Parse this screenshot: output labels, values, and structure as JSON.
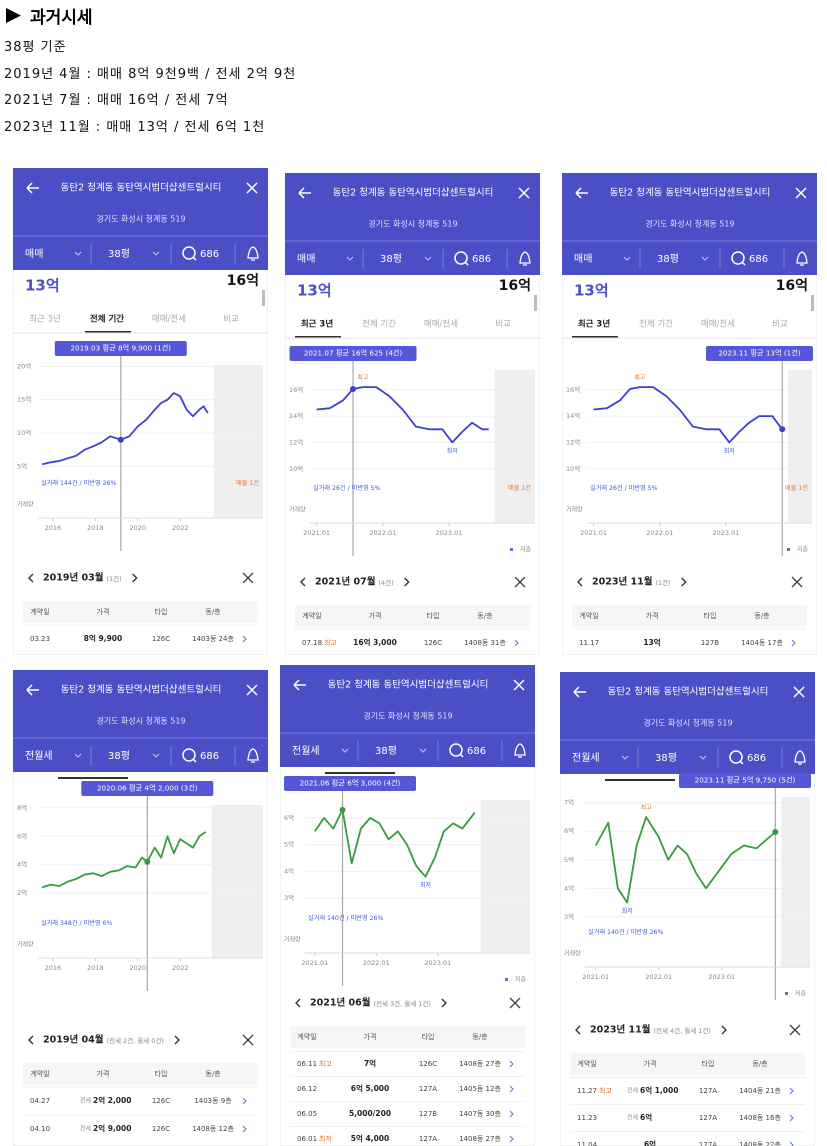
{
  "header": {
    "title": "과거시세",
    "lines": [
      "38평 기준",
      "2019년 4월 : 매매 8억 9천9백 / 전세 2억 9천",
      "2021년 7월 : 매매 16억 / 전세 7억",
      "2023년 11월 : 매매 13억 / 전세 6억 1천"
    ]
  },
  "panels": [
    {
      "title": "동탄2 청계동 동탄역시범더샵센트럴시티",
      "address": "경기도 화성시 청계동 519",
      "trade_type": "매매",
      "size": "38평",
      "count": "686",
      "price_low": "13억",
      "price_high": "16억",
      "tabs": [
        "최근 3년",
        "전체 기간",
        "매매/전세",
        "비교"
      ],
      "selected_tab": 1,
      "chart": {
        "type": "line",
        "color": "#3d3fd0",
        "tooltip": "2019.03 평균 8억 9,900 (1건)",
        "xlim": [
          2015.3,
          2025.9
        ],
        "ylim": [
          4,
          20.2
        ],
        "xticks": [
          2016,
          2018,
          2020,
          2022
        ],
        "yticks": [
          {
            "value": 5,
            "label": "5억"
          },
          {
            "value": 10,
            "label": "10억"
          },
          {
            "value": 15,
            "label": "15억"
          },
          {
            "value": 20,
            "label": "20억"
          }
        ],
        "x": [
          2015.5,
          2015.9,
          2016.3,
          2016.7,
          2017.1,
          2017.5,
          2017.9,
          2018.3,
          2018.7,
          2019.2,
          2019.6,
          2020.0,
          2020.4,
          2020.8,
          2021.1,
          2021.4,
          2021.7,
          2022.0,
          2022.3,
          2022.6,
          2022.9,
          2023.1,
          2023.3
        ],
        "values": [
          5.3,
          5.6,
          5.8,
          6.2,
          6.6,
          7.5,
          8.0,
          8.6,
          9.5,
          8.99,
          9.5,
          11,
          12,
          13.5,
          14.5,
          15,
          16,
          15.5,
          13.5,
          12.5,
          13.5,
          14,
          13
        ],
        "highlight": {
          "x": 2019.2,
          "value": 8.99
        },
        "summary": "실거래 144건 / 미반영 26%",
        "listing": "매물 1건",
        "volume_label": "거래량"
      },
      "table": {
        "period": "2019년 03월",
        "count": "(1건)",
        "columns": [
          "계약일",
          "가격",
          "타입",
          "동/층"
        ],
        "rows": [
          {
            "date": "03.23",
            "price": "8억 9,900",
            "type": "126C",
            "unit": "1403동 24층"
          }
        ]
      }
    },
    {
      "title": "동탄2 청계동 동탄역시범더샵센트럴시티",
      "address": "경기도 화성시 청계동 519",
      "trade_type": "매매",
      "size": "38평",
      "count": "686",
      "price_low": "13억",
      "price_high": "16억",
      "tabs": [
        "최근 3년",
        "전체 기간",
        "매매/전세",
        "비교"
      ],
      "selected_tab": 0,
      "chart": {
        "type": "line",
        "color": "#3d3fd0",
        "tooltip": "2021.07 평균 16억 625 (4건)",
        "xlim": [
          2020.9,
          2024.3
        ],
        "ylim": [
          9.3,
          17.5
        ],
        "xticks": [
          {
            "value": 2021,
            "label": "2021.01"
          },
          {
            "value": 2022,
            "label": "2022.01"
          },
          {
            "value": 2023,
            "label": "2023.01"
          }
        ],
        "yticks": [
          {
            "value": 10,
            "label": "10억"
          },
          {
            "value": 12,
            "label": "12억"
          },
          {
            "value": 14,
            "label": "14억"
          },
          {
            "value": 16,
            "label": "16억"
          }
        ],
        "x": [
          2021.0,
          2021.2,
          2021.4,
          2021.55,
          2021.7,
          2021.9,
          2022.1,
          2022.3,
          2022.5,
          2022.7,
          2022.9,
          2023.05,
          2023.2,
          2023.35,
          2023.5,
          2023.6
        ],
        "values": [
          14.5,
          14.6,
          15.2,
          16.06,
          16.2,
          16.2,
          15.5,
          14.5,
          13.2,
          13.0,
          13.0,
          12.0,
          12.8,
          13.5,
          13.0,
          13.0
        ],
        "highlight": {
          "x": 2021.55,
          "value": 16.06
        },
        "high_label": "최고",
        "low_label": "최저",
        "summary": "실거래 26건 / 미반영 5%",
        "listing": "매물 1건",
        "volume_label": "거래량",
        "legend": "저층"
      },
      "table": {
        "period": "2021년 07월",
        "count": "(4건)",
        "columns": [
          "계약일",
          "가격",
          "타입",
          "동/층"
        ],
        "rows": [
          {
            "date": "07.18",
            "tag": "최고",
            "price": "16억 3,000",
            "type": "126C",
            "unit": "1408동 31층"
          }
        ]
      }
    },
    {
      "title": "동탄2 청계동 동탄역시범더샵센트럴시티",
      "address": "경기도 화성시 청계동 519",
      "trade_type": "매매",
      "size": "38평",
      "count": "686",
      "price_low": "13억",
      "price_high": "16억",
      "tabs": [
        "최근 3년",
        "전체 기간",
        "매매/전세",
        "비교"
      ],
      "selected_tab": 0,
      "chart": {
        "type": "line",
        "color": "#3d3fd0",
        "tooltip": "2023.11 평균 13억 (1건)",
        "xlim": [
          2020.9,
          2024.3
        ],
        "ylim": [
          9.3,
          17.5
        ],
        "xticks": [
          {
            "value": 2021,
            "label": "2021.01"
          },
          {
            "value": 2022,
            "label": "2022.01"
          },
          {
            "value": 2023,
            "label": "2023.01"
          }
        ],
        "yticks": [
          {
            "value": 10,
            "label": "10억"
          },
          {
            "value": 12,
            "label": "12억"
          },
          {
            "value": 14,
            "label": "14억"
          },
          {
            "value": 16,
            "label": "16억"
          }
        ],
        "x": [
          2021.0,
          2021.2,
          2021.4,
          2021.55,
          2021.7,
          2021.9,
          2022.1,
          2022.3,
          2022.5,
          2022.7,
          2022.9,
          2023.05,
          2023.2,
          2023.35,
          2023.5,
          2023.7,
          2023.85
        ],
        "values": [
          14.5,
          14.6,
          15.2,
          16.06,
          16.2,
          16.2,
          15.5,
          14.5,
          13.2,
          13.0,
          13.0,
          12.0,
          12.8,
          13.5,
          14.0,
          14.0,
          13
        ],
        "highlight": {
          "x": 2023.85,
          "value": 13
        },
        "high_label": "최고",
        "low_label": "최저",
        "summary": "실거래 26건 / 미반영 5%",
        "listing": "매물 1건",
        "volume_label": "거래량",
        "legend": "저층"
      },
      "table": {
        "period": "2023년 11월",
        "count": "(1건)",
        "columns": [
          "계약일",
          "가격",
          "타입",
          "동/층"
        ],
        "rows": [
          {
            "date": "11.17",
            "price": "13억",
            "type": "127B",
            "unit": "1404동 17층"
          }
        ]
      }
    },
    {
      "title": "동탄2 청계동 동탄역시범더샵센트럴시티",
      "address": "경기도 화성시 청계동 519",
      "trade_type": "전월세",
      "size": "38평",
      "count": "686",
      "chart": {
        "type": "line",
        "color": "#3a9a3e",
        "tooltip": "2020.06 평균 4억 2,000 (3건)",
        "xlim": [
          2015.3,
          2025.9
        ],
        "ylim": [
          0.6,
          8.2
        ],
        "xticks": [
          2016,
          2018,
          2020,
          2022
        ],
        "yticks": [
          {
            "value": 2,
            "label": "2억"
          },
          {
            "value": 4,
            "label": "4억"
          },
          {
            "value": 6,
            "label": "6억"
          },
          {
            "value": 8,
            "label": "8억"
          }
        ],
        "x": [
          2015.5,
          2015.9,
          2016.3,
          2016.7,
          2017.1,
          2017.5,
          2017.9,
          2018.3,
          2018.7,
          2019.1,
          2019.5,
          2019.9,
          2020.2,
          2020.45,
          2020.8,
          2021.1,
          2021.4,
          2021.7,
          2022.0,
          2022.3,
          2022.6,
          2022.9,
          2023.2
        ],
        "values": [
          2.4,
          2.6,
          2.5,
          2.8,
          3.0,
          3.3,
          3.4,
          3.2,
          3.5,
          3.6,
          3.9,
          3.8,
          4.5,
          4.2,
          5.2,
          4.5,
          6.0,
          4.8,
          5.8,
          5.5,
          5.2,
          6.0,
          6.3
        ],
        "highlight": {
          "x": 2020.45,
          "value": 4.2
        },
        "summary": "실거래 348건 / 미반영 6%",
        "volume_label": "거래량"
      },
      "table": {
        "period": "2019년 04월",
        "count": "(전세 2건, 월세 0건)",
        "columns": [
          "계약일",
          "가격",
          "타입",
          "동/층"
        ],
        "rows": [
          {
            "date": "04.27",
            "kind": "전세",
            "price": "2억 2,000",
            "type": "126C",
            "unit": "1403동 9층"
          },
          {
            "date": "04.10",
            "kind": "전세",
            "price": "2억 9,000",
            "type": "126C",
            "unit": "1408동 12층"
          }
        ]
      }
    },
    {
      "title": "동탄2 청계동 동탄역시범더샵센트럴시티",
      "address": "경기도 화성시 청계동 519",
      "trade_type": "전월세",
      "size": "38평",
      "count": "686",
      "chart": {
        "type": "line",
        "color": "#3a9a3e",
        "tooltip": "2021.06 평균 6억 3,000 (4건)",
        "xlim": [
          2020.84,
          2024.5
        ],
        "ylim": [
          2.63,
          6.67
        ],
        "xticks": [
          {
            "value": 2021,
            "label": "2021.01"
          },
          {
            "value": 2022,
            "label": "2022.01"
          },
          {
            "value": 2023,
            "label": "2023.01"
          }
        ],
        "yticks": [
          {
            "value": 3,
            "label": "3억"
          },
          {
            "value": 4,
            "label": "4억"
          },
          {
            "value": 5,
            "label": "5억"
          },
          {
            "value": 6,
            "label": "6억"
          }
        ],
        "x": [
          2021.0,
          2021.15,
          2021.3,
          2021.45,
          2021.6,
          2021.75,
          2021.9,
          2022.05,
          2022.2,
          2022.35,
          2022.5,
          2022.65,
          2022.8,
          2022.95,
          2023.1,
          2023.25,
          2023.4,
          2023.6
        ],
        "values": [
          5.5,
          6.0,
          5.6,
          6.3,
          4.3,
          5.6,
          6.0,
          5.8,
          5.2,
          5.5,
          5.0,
          4.2,
          3.8,
          4.5,
          5.5,
          5.8,
          5.6,
          6.2
        ],
        "highlight": {
          "x": 2021.45,
          "value": 6.3
        },
        "low_label": "최저",
        "summary": "실거래 140건 / 미반영 26%",
        "volume_label": "거래량",
        "legend": "저층"
      },
      "table": {
        "period": "2021년 06월",
        "count": "(전세 3건, 월세 1건)",
        "columns": [
          "계약일",
          "가격",
          "타입",
          "동/층"
        ],
        "rows": [
          {
            "date": "06.11",
            "tag": "최고",
            "price": "7억",
            "type": "126C",
            "unit": "1408동 27층"
          },
          {
            "date": "06.12",
            "price": "6억 5,000",
            "type": "127A",
            "unit": "1405동 12층"
          },
          {
            "date": "06.05",
            "price": "5,000/200",
            "type": "127B",
            "unit": "1407동 30층"
          },
          {
            "date": "06.01",
            "tag": "최저",
            "price": "5억 4,000",
            "type": "127A",
            "unit": "1408동 27층"
          }
        ]
      }
    },
    {
      "title": "동탄2 청계동 동탄역시범더샵센트럴시티",
      "address": "경기도 화성시 청계동 519",
      "trade_type": "전월세",
      "size": "38평",
      "count": "686",
      "chart": {
        "type": "line",
        "color": "#3a9a3e",
        "tooltip": "2023.11 평균 5억 9,750 (5건)",
        "xlim": [
          2020.83,
          2024.4
        ],
        "ylim": [
          2.82,
          7.2
        ],
        "xticks": [
          {
            "value": 2021,
            "label": "2021.01"
          },
          {
            "value": 2022,
            "label": "2022.01"
          },
          {
            "value": 2023,
            "label": "2023.01"
          }
        ],
        "yticks": [
          {
            "value": 3,
            "label": "3억"
          },
          {
            "value": 4,
            "label": "4억"
          },
          {
            "value": 5,
            "label": "5억"
          },
          {
            "value": 6,
            "label": "6억"
          },
          {
            "value": 7,
            "label": "7억"
          }
        ],
        "x": [
          2021.0,
          2021.2,
          2021.35,
          2021.5,
          2021.65,
          2021.8,
          2022.0,
          2022.15,
          2022.3,
          2022.45,
          2022.6,
          2022.75,
          2022.95,
          2023.15,
          2023.35,
          2023.55,
          2023.85
        ],
        "values": [
          5.5,
          6.3,
          4.0,
          3.5,
          5.5,
          6.5,
          5.8,
          5.0,
          5.5,
          5.2,
          4.5,
          4.0,
          4.6,
          5.2,
          5.5,
          5.4,
          5.975
        ],
        "highlight": {
          "x": 2023.85,
          "value": 5.975
        },
        "high_label": "최고",
        "low_label": "최저",
        "summary": "실거래 140건 / 미반영 26%",
        "volume_label": "거래량",
        "legend": "저층"
      },
      "table": {
        "period": "2023년 11월",
        "count": "(전세 4건, 월세 1건)",
        "columns": [
          "계약일",
          "가격",
          "타입",
          "동/층"
        ],
        "rows": [
          {
            "date": "11.27",
            "tag": "최고",
            "kind": "전세",
            "price": "6억 1,000",
            "type": "127A",
            "unit": "1404동 21층"
          },
          {
            "date": "11.23",
            "kind": "전세",
            "price": "6억",
            "type": "127A",
            "unit": "1408동 16층"
          },
          {
            "date": "11.04",
            "price": "6억",
            "type": "127A",
            "unit": "1408동 22층"
          }
        ]
      }
    }
  ]
}
